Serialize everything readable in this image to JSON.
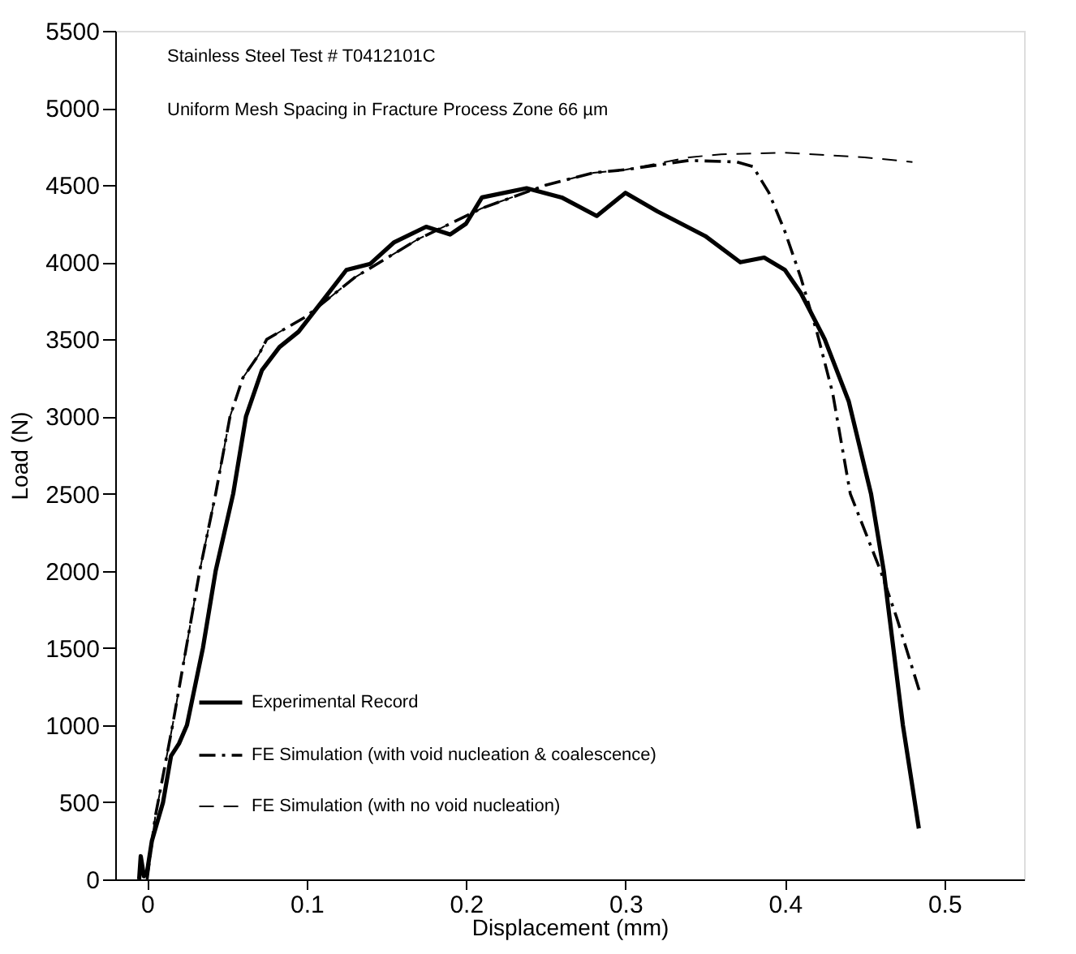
{
  "chart_data": {
    "type": "line",
    "xlabel": "Displacement (mm)",
    "ylabel": "Load (N)",
    "annotations": [
      "Stainless Steel   Test # T0412101C",
      "Uniform Mesh Spacing in Fracture Process Zone   66 µm"
    ],
    "xlim": [
      -0.02,
      0.55
    ],
    "xticks": [
      0,
      0.1,
      0.2,
      0.3,
      0.4,
      0.5
    ],
    "ylim": [
      0,
      5500
    ],
    "yticks": [
      0,
      500,
      1000,
      1500,
      2000,
      2500,
      3000,
      3500,
      4000,
      4500,
      5000,
      5500
    ],
    "grid": false,
    "legend": "bottom left",
    "marker": "none",
    "series": [
      {
        "name": "Experimental Record",
        "color": "#000000",
        "line_style": "solid",
        "x": [
          -0.005,
          -0.004,
          -0.002,
          0,
          0.003,
          0.01,
          0.015,
          0.02,
          0.025,
          0.035,
          0.043,
          0.054,
          0.062,
          0.072,
          0.083,
          0.095,
          0.11,
          0.125,
          0.14,
          0.155,
          0.175,
          0.19,
          0.2,
          0.21,
          0.238,
          0.26,
          0.282,
          0.3,
          0.32,
          0.35,
          0.372,
          0.387,
          0.4,
          0.41,
          0.425,
          0.44,
          0.454,
          0.462,
          0.468,
          0.474,
          0.48,
          0.484
        ],
        "values": [
          0,
          150,
          20,
          50,
          250,
          500,
          800,
          880,
          1000,
          1500,
          2000,
          2500,
          3000,
          3300,
          3450,
          3550,
          3750,
          3950,
          3990,
          4130,
          4230,
          4180,
          4250,
          4420,
          4480,
          4420,
          4300,
          4450,
          4330,
          4170,
          4000,
          4030,
          3950,
          3800,
          3500,
          3100,
          2500,
          2000,
          1500,
          1000,
          600,
          330
        ]
      },
      {
        "name": "FE Simulation (with void nucleation & coalescence)",
        "color": "#000000",
        "line_style": "dashdot",
        "x": [
          0,
          0.005,
          0.016,
          0.033,
          0.043,
          0.052,
          0.06,
          0.07,
          0.075,
          0.1,
          0.13,
          0.17,
          0.21,
          0.25,
          0.28,
          0.3,
          0.34,
          0.37,
          0.38,
          0.39,
          0.4,
          0.41,
          0.42,
          0.43,
          0.441,
          0.46,
          0.47,
          0.485
        ],
        "values": [
          0,
          400,
          1000,
          2000,
          2500,
          3000,
          3250,
          3400,
          3500,
          3650,
          3900,
          4150,
          4350,
          4500,
          4580,
          4600,
          4660,
          4650,
          4620,
          4450,
          4200,
          3900,
          3550,
          3150,
          2500,
          2000,
          1700,
          1200
        ]
      },
      {
        "name": "FE Simulation (with no void nucleation)",
        "color": "#000000",
        "line_style": "dashed",
        "x": [
          0,
          0.005,
          0.016,
          0.033,
          0.043,
          0.052,
          0.06,
          0.07,
          0.075,
          0.1,
          0.13,
          0.17,
          0.21,
          0.25,
          0.28,
          0.3,
          0.34,
          0.36,
          0.4,
          0.45,
          0.48
        ],
        "values": [
          0,
          400,
          1000,
          2000,
          2500,
          3000,
          3250,
          3400,
          3500,
          3650,
          3900,
          4150,
          4350,
          4500,
          4580,
          4600,
          4680,
          4700,
          4710,
          4680,
          4650
        ]
      }
    ]
  }
}
